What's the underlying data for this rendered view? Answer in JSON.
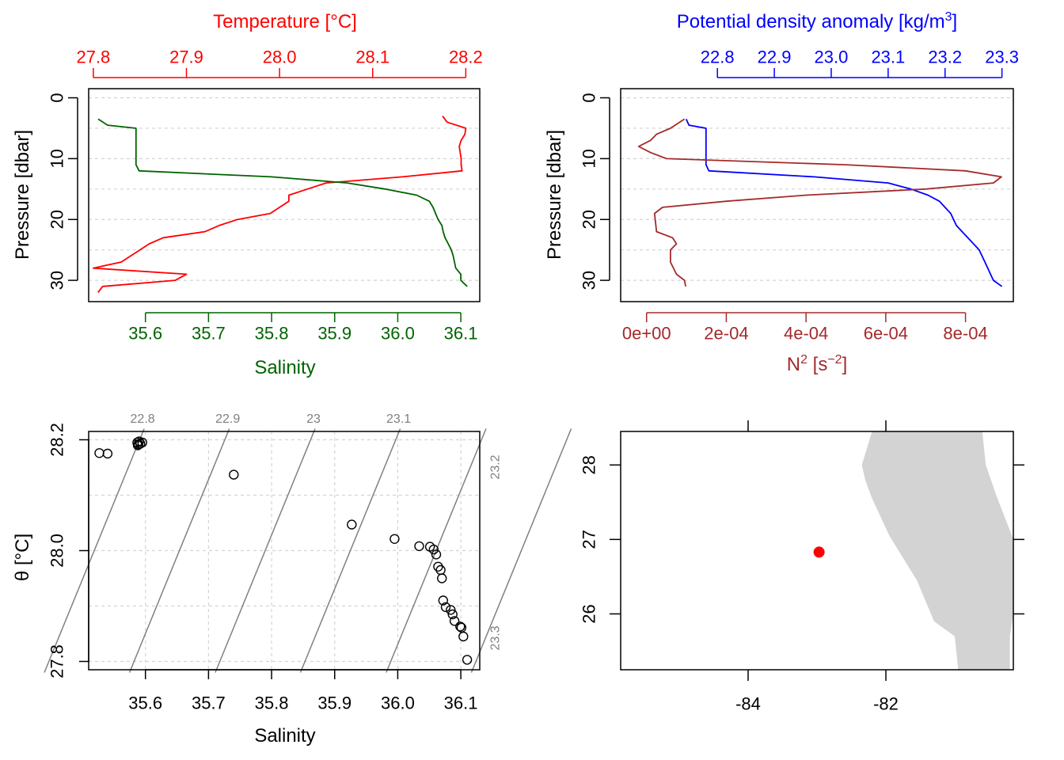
{
  "colors": {
    "temperature": "#ff0000",
    "salinity": "#006400",
    "sigma": "#0000ff",
    "n2": "#a52a2a",
    "axis": "#000000",
    "grid": "#d3d3d3",
    "isopycnal": "#808080",
    "land": "#d3d3d3",
    "station": "#ff0000"
  },
  "chart_data": [
    {
      "type": "line",
      "name": "salinity-temperature-profile",
      "ylabel": "Pressure [dbar]",
      "ylim": [
        33.5,
        -1.5
      ],
      "y_ticks": [
        "0",
        "10",
        "20",
        "30"
      ],
      "grid": "dotted horizontal at every 5 dbar",
      "top_axis": {
        "title": "Temperature [°C]",
        "ticks": [
          "27.8",
          "27.9",
          "28.0",
          "28.1",
          "28.2"
        ],
        "xlim": [
          27.795,
          28.215
        ]
      },
      "bottom_axis": {
        "title": "Salinity",
        "ticks": [
          "35.6",
          "35.7",
          "35.8",
          "35.9",
          "36.0",
          "36.1"
        ],
        "xlim": [
          35.51,
          36.13
        ]
      },
      "series": [
        {
          "variable": "temperature",
          "points": [
            [
              28.175,
              3
            ],
            [
              28.18,
              4
            ],
            [
              28.2,
              5
            ],
            [
              28.199,
              6
            ],
            [
              28.195,
              7
            ],
            [
              28.193,
              8
            ],
            [
              28.194,
              9
            ],
            [
              28.195,
              10
            ],
            [
              28.195,
              11
            ],
            [
              28.196,
              12
            ],
            [
              28.132,
              13
            ],
            [
              28.05,
              14
            ],
            [
              28.03,
              15
            ],
            [
              28.01,
              16
            ],
            [
              28.01,
              17
            ],
            [
              28.0,
              18
            ],
            [
              27.99,
              19
            ],
            [
              27.955,
              20
            ],
            [
              27.935,
              21
            ],
            [
              27.92,
              22
            ],
            [
              27.875,
              23
            ],
            [
              27.86,
              24
            ],
            [
              27.85,
              25
            ],
            [
              27.84,
              26
            ],
            [
              27.83,
              27
            ],
            [
              27.8,
              28
            ],
            [
              27.9,
              29
            ],
            [
              27.888,
              30
            ],
            [
              27.81,
              31
            ],
            [
              27.805,
              32
            ]
          ]
        },
        {
          "variable": "salinity",
          "points": [
            [
              35.525,
              3.5
            ],
            [
              35.54,
              4.5
            ],
            [
              35.585,
              5
            ],
            [
              35.585,
              7
            ],
            [
              35.585,
              9
            ],
            [
              35.585,
              11
            ],
            [
              35.59,
              12
            ],
            [
              35.8,
              13
            ],
            [
              35.92,
              14
            ],
            [
              35.98,
              15
            ],
            [
              36.03,
              16
            ],
            [
              36.05,
              17
            ],
            [
              36.056,
              18
            ],
            [
              36.06,
              19
            ],
            [
              36.064,
              20
            ],
            [
              36.07,
              21
            ],
            [
              36.072,
              22
            ],
            [
              36.075,
              23
            ],
            [
              36.08,
              24
            ],
            [
              36.085,
              25
            ],
            [
              36.088,
              26
            ],
            [
              36.09,
              27
            ],
            [
              36.092,
              28
            ],
            [
              36.1,
              29
            ],
            [
              36.1,
              30
            ],
            [
              36.11,
              31
            ]
          ]
        }
      ]
    },
    {
      "type": "line",
      "name": "sigma-n2-profile",
      "ylabel": "Pressure [dbar]",
      "ylim": [
        33.5,
        -1.5
      ],
      "y_ticks": [
        "0",
        "10",
        "20",
        "30"
      ],
      "grid": "dotted horizontal at every 5 dbar",
      "top_axis": {
        "title": "Potential density anomaly [kg/m3]",
        "ticks": [
          "22.8",
          "22.9",
          "23.0",
          "23.1",
          "23.2",
          "23.3"
        ],
        "xlim": [
          22.63,
          23.32
        ]
      },
      "bottom_axis": {
        "title": "N2 [s-2]",
        "ticks": [
          "0e+00",
          "2e-04",
          "4e-04",
          "6e-04",
          "8e-04"
        ],
        "xlim": [
          -6.5e-05,
          0.00092
        ]
      },
      "series": [
        {
          "variable": "sigma-theta",
          "points": [
            [
              22.745,
              3.5
            ],
            [
              22.75,
              4.5
            ],
            [
              22.78,
              5
            ],
            [
              22.78,
              7
            ],
            [
              22.78,
              9
            ],
            [
              22.78,
              11
            ],
            [
              22.785,
              12
            ],
            [
              22.97,
              13
            ],
            [
              23.1,
              14
            ],
            [
              23.14,
              15
            ],
            [
              23.17,
              16
            ],
            [
              23.19,
              17
            ],
            [
              23.2,
              18
            ],
            [
              23.21,
              19
            ],
            [
              23.215,
              20
            ],
            [
              23.22,
              21
            ],
            [
              23.23,
              22
            ],
            [
              23.24,
              23
            ],
            [
              23.25,
              24
            ],
            [
              23.26,
              25
            ],
            [
              23.265,
              26
            ],
            [
              23.27,
              27
            ],
            [
              23.275,
              28
            ],
            [
              23.28,
              29
            ],
            [
              23.285,
              30
            ],
            [
              23.3,
              31
            ]
          ]
        },
        {
          "variable": "N2",
          "points": [
            [
              9.5e-05,
              3.5
            ],
            [
              6e-05,
              5
            ],
            [
              2.5e-05,
              6
            ],
            [
              1e-05,
              7
            ],
            [
              -2e-05,
              8
            ],
            [
              1e-05,
              9
            ],
            [
              5e-05,
              10
            ],
            [
              0.0005,
              11
            ],
            [
              0.0008,
              12
            ],
            [
              0.00089,
              13
            ],
            [
              0.00087,
              14
            ],
            [
              0.0007,
              15
            ],
            [
              0.0004,
              16
            ],
            [
              0.0002,
              17
            ],
            [
              4e-05,
              18
            ],
            [
              2e-05,
              19
            ],
            [
              2.5e-05,
              22
            ],
            [
              6.5e-05,
              23
            ],
            [
              7.5e-05,
              24
            ],
            [
              6e-05,
              25
            ],
            [
              6e-05,
              27
            ],
            [
              7.5e-05,
              29
            ],
            [
              9.5e-05,
              30
            ],
            [
              9.8e-05,
              31
            ]
          ]
        }
      ]
    },
    {
      "type": "scatter",
      "name": "ts-diagram",
      "xlabel": "Salinity",
      "ylabel": "θ [°C]",
      "xlim": [
        35.51,
        36.13
      ],
      "ylim": [
        27.785,
        28.215
      ],
      "x_ticks": [
        "35.6",
        "35.7",
        "35.8",
        "35.9",
        "36.0",
        "36.1"
      ],
      "y_ticks": [
        "27.8",
        "28.0",
        "28.2"
      ],
      "grid": "dotted",
      "isopycnals": [
        "22.8",
        "22.9",
        "23",
        "23.1",
        "23.2",
        "23.3"
      ],
      "points": [
        [
          35.527,
          28.176
        ],
        [
          35.54,
          28.175
        ],
        [
          35.587,
          28.195
        ],
        [
          35.588,
          28.19
        ],
        [
          35.589,
          28.192
        ],
        [
          35.59,
          28.197
        ],
        [
          35.592,
          28.193
        ],
        [
          35.595,
          28.195
        ],
        [
          35.74,
          28.137
        ],
        [
          35.927,
          28.047
        ],
        [
          35.995,
          28.021
        ],
        [
          36.034,
          28.008
        ],
        [
          36.051,
          28.007
        ],
        [
          36.057,
          28.002
        ],
        [
          36.061,
          27.993
        ],
        [
          36.064,
          27.971
        ],
        [
          36.068,
          27.965
        ],
        [
          36.07,
          27.95
        ],
        [
          36.072,
          27.91
        ],
        [
          36.076,
          27.898
        ],
        [
          36.084,
          27.893
        ],
        [
          36.087,
          27.885
        ],
        [
          36.09,
          27.873
        ],
        [
          36.099,
          27.863
        ],
        [
          36.101,
          27.861
        ],
        [
          36.104,
          27.845
        ],
        [
          36.11,
          27.803
        ]
      ]
    }
  ],
  "map": {
    "x_ticks": [
      "-84",
      "-82"
    ],
    "y_ticks": [
      "26",
      "27",
      "28"
    ],
    "xlim": [
      -85.85,
      -80.15
    ],
    "ylim": [
      25.25,
      28.45
    ],
    "station": {
      "lon": -82.97,
      "lat": 26.83
    },
    "coastline": [
      [
        -82.2,
        28.45
      ],
      [
        -82.35,
        28.0
      ],
      [
        -82.3,
        27.8
      ],
      [
        -82.2,
        27.55
      ],
      [
        -81.95,
        27.05
      ],
      [
        -81.55,
        26.45
      ],
      [
        -81.3,
        25.9
      ],
      [
        -81.0,
        25.7
      ],
      [
        -80.95,
        25.25
      ],
      [
        -80.2,
        25.25
      ],
      [
        -80.2,
        25.7
      ],
      [
        -80.15,
        26.0
      ],
      [
        -80.15,
        27.0
      ],
      [
        -80.4,
        27.6
      ],
      [
        -80.55,
        28.0
      ],
      [
        -80.6,
        28.45
      ]
    ]
  }
}
